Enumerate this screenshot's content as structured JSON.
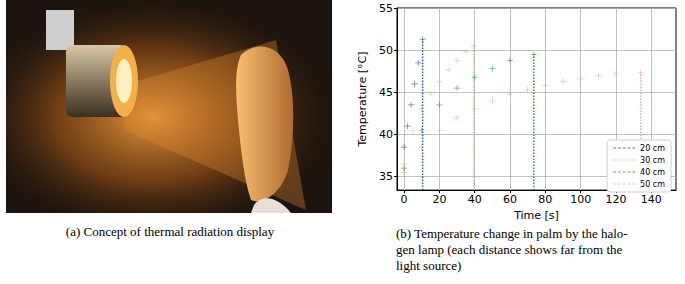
{
  "captions": {
    "a": "(a) Concept of thermal radiation display",
    "b": [
      "(b) Temperature change in palm by the halo-",
      "gen lamp (each distance shows far from the",
      "light source)"
    ]
  },
  "chart_data": {
    "type": "scatter",
    "x_label": "Time [s]",
    "y_label": "Temperature [°C]",
    "xlim": [
      -4,
      154
    ],
    "xticks": [
      0,
      20,
      40,
      60,
      80,
      100,
      120,
      140
    ],
    "ylim": [
      33.4,
      55
    ],
    "yticks": [
      35,
      40,
      45,
      50,
      55
    ],
    "grid": true,
    "legend": "lower right",
    "marker": "plus",
    "line_style": "dotted",
    "series": [
      {
        "name": "20 cm",
        "color": "#1f5fa8",
        "x": [
          0,
          2,
          4,
          6,
          8,
          10.5
        ],
        "values": [
          38.5,
          41,
          43.5,
          46,
          48.5,
          51.3
        ]
      },
      {
        "name": "30 cm",
        "color": "#a6d98a",
        "x": [
          0,
          5,
          10,
          15,
          20,
          25,
          30,
          35,
          39.5
        ],
        "values": [
          36.5,
          40.5,
          43,
          44.8,
          46.3,
          47.7,
          48.8,
          49.8,
          50.5
        ]
      },
      {
        "name": "40 cm",
        "color": "#2e9a3a",
        "x": [
          0,
          10,
          20,
          30,
          40,
          50,
          60,
          73.5
        ],
        "values": [
          36,
          40.5,
          43.5,
          45.5,
          46.8,
          47.8,
          48.8,
          49.5
        ]
      },
      {
        "name": "50 cm",
        "color": "#f4a3a3",
        "x": [
          0,
          10,
          20,
          30,
          40,
          50,
          60,
          70,
          80,
          90,
          100,
          110,
          120,
          134
        ],
        "values": [
          35.5,
          38.5,
          40.5,
          42,
          43,
          44,
          44.8,
          45.3,
          45.8,
          46.3,
          46.6,
          47,
          47.2,
          47.3
        ]
      }
    ]
  }
}
